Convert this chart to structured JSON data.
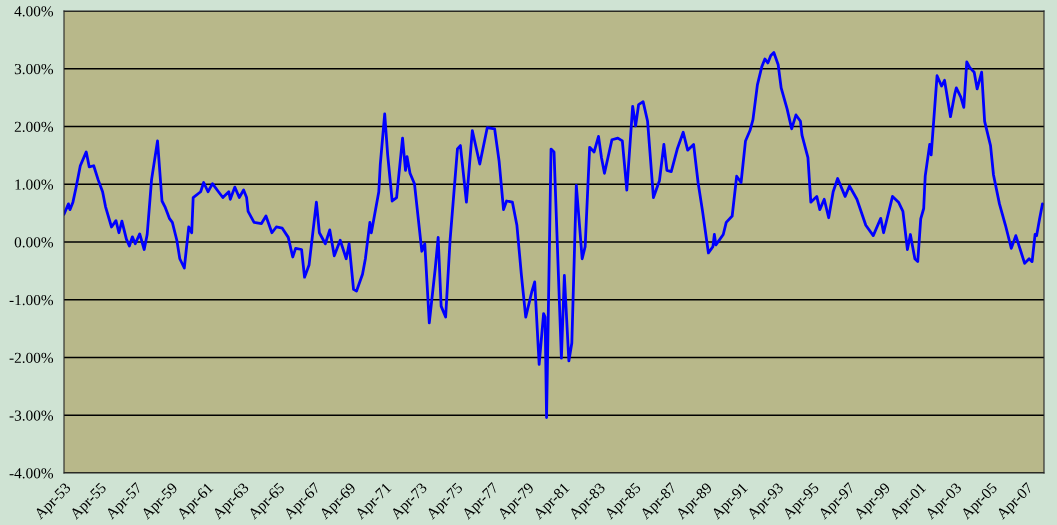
{
  "chart_data": {
    "type": "line",
    "x": [
      "1953-04",
      "1953-07",
      "1953-08",
      "1953-10",
      "1953-12",
      "1954-03",
      "1954-07",
      "1954-09",
      "1954-12",
      "1955-03",
      "1955-06",
      "1955-08",
      "1955-12",
      "1956-03",
      "1956-05",
      "1956-07",
      "1956-10",
      "1956-12",
      "1957-02",
      "1957-04",
      "1957-07",
      "1957-10",
      "1957-12",
      "1958-03",
      "1958-07",
      "1958-10",
      "1958-12",
      "1959-03",
      "1959-05",
      "1959-08",
      "1959-10",
      "1960-01",
      "1960-04",
      "1960-06",
      "1960-07",
      "1960-12",
      "1961-02",
      "1961-05",
      "1961-08",
      "1961-12",
      "1962-03",
      "1962-07",
      "1962-08",
      "1962-11",
      "1963-02",
      "1963-05",
      "1963-07",
      "1963-08",
      "1963-12",
      "1964-05",
      "1964-08",
      "1964-12",
      "1965-03",
      "1965-07",
      "1965-11",
      "1966-02",
      "1966-04",
      "1966-08",
      "1966-10",
      "1967-01",
      "1967-06",
      "1967-08",
      "1967-12",
      "1968-03",
      "1968-06",
      "1968-10",
      "1969-02",
      "1969-04",
      "1969-07",
      "1969-09",
      "1970-01",
      "1970-03",
      "1970-06",
      "1970-07",
      "1970-12",
      "1971-01",
      "1971-04",
      "1971-06",
      "1971-09",
      "1971-12",
      "1972-04",
      "1972-06",
      "1972-07",
      "1972-09",
      "1972-12",
      "1973-05",
      "1973-07",
      "1973-10",
      "1974-02",
      "1974-04",
      "1974-06",
      "1974-09",
      "1974-12",
      "1975-05",
      "1975-07",
      "1975-11",
      "1976-03",
      "1976-08",
      "1977-01",
      "1977-06",
      "1977-09",
      "1977-12",
      "1978-02",
      "1978-06",
      "1978-09",
      "1978-12",
      "1979-03",
      "1979-07",
      "1979-09",
      "1979-12",
      "1980-03",
      "1980-04",
      "1980-05",
      "1980-08",
      "1980-10",
      "1981-03",
      "1981-05",
      "1981-08",
      "1981-10",
      "1982-01",
      "1982-05",
      "1982-07",
      "1982-10",
      "1983-01",
      "1983-04",
      "1983-06",
      "1983-08",
      "1984-01",
      "1984-05",
      "1984-08",
      "1984-11",
      "1985-03",
      "1985-05",
      "1985-07",
      "1985-10",
      "1986-01",
      "1986-05",
      "1986-09",
      "1986-12",
      "1987-02",
      "1987-05",
      "1987-09",
      "1988-01",
      "1988-04",
      "1988-08",
      "1988-11",
      "1989-02",
      "1989-06",
      "1989-09",
      "1989-10",
      "1989-11",
      "1990-04",
      "1990-06",
      "1990-10",
      "1991-01",
      "1991-04",
      "1991-07",
      "1991-10",
      "1991-12",
      "1992-03",
      "1992-06",
      "1992-08",
      "1992-10",
      "1992-12",
      "1993-02",
      "1993-05",
      "1993-07",
      "1993-11",
      "1994-02",
      "1994-05",
      "1994-08",
      "1994-09",
      "1995-01",
      "1995-03",
      "1995-07",
      "1995-09",
      "1995-12",
      "1996-03",
      "1996-06",
      "1996-09",
      "1997-02",
      "1997-05",
      "1997-10",
      "1998-04",
      "1998-09",
      "1999-02",
      "1999-04",
      "1999-10",
      "2000-02",
      "2000-05",
      "2000-08",
      "2000-10",
      "2001-01",
      "2001-03",
      "2001-05",
      "2001-07",
      "2001-08",
      "2001-11",
      "2001-12",
      "2002-04",
      "2002-07",
      "2002-09",
      "2003-01",
      "2003-04",
      "2003-05",
      "2003-08",
      "2003-10",
      "2003-12",
      "2004-02",
      "2004-05",
      "2004-07",
      "2004-10",
      "2004-12",
      "2005-04",
      "2005-06",
      "2005-10",
      "2006-02",
      "2006-06",
      "2006-09",
      "2006-12",
      "2007-03",
      "2007-06",
      "2007-08",
      "2007-10",
      "2007-11",
      "2008-01",
      "2008-03"
    ],
    "series": [
      {
        "color": "#0000ff",
        "values": [
          0.48,
          0.66,
          0.56,
          0.69,
          0.93,
          1.32,
          1.56,
          1.3,
          1.32,
          1.08,
          0.87,
          0.61,
          0.26,
          0.37,
          0.16,
          0.36,
          0.05,
          -0.07,
          0.09,
          -0.03,
          0.14,
          -0.13,
          0.13,
          1.08,
          1.75,
          0.71,
          0.61,
          0.41,
          0.34,
          0.03,
          -0.29,
          -0.45,
          0.26,
          0.16,
          0.77,
          0.87,
          1.03,
          0.87,
          1.01,
          0.87,
          0.77,
          0.87,
          0.74,
          0.95,
          0.77,
          0.9,
          0.77,
          0.53,
          0.34,
          0.32,
          0.45,
          0.16,
          0.26,
          0.24,
          0.08,
          -0.26,
          -0.11,
          -0.13,
          -0.61,
          -0.4,
          0.69,
          0.16,
          -0.03,
          0.21,
          -0.24,
          0.03,
          -0.29,
          -0.03,
          -0.82,
          -0.85,
          -0.56,
          -0.29,
          0.34,
          0.16,
          0.87,
          1.35,
          2.22,
          1.51,
          0.71,
          0.77,
          1.8,
          1.24,
          1.48,
          1.19,
          1.01,
          -0.16,
          -0.03,
          -1.4,
          -0.45,
          0.08,
          -1.11,
          -1.3,
          0.03,
          1.61,
          1.67,
          0.69,
          1.93,
          1.35,
          1.98,
          1.96,
          1.4,
          0.56,
          0.71,
          0.69,
          0.29,
          -0.56,
          -1.3,
          -0.87,
          -0.69,
          -2.12,
          -1.24,
          -1.3,
          -3.04,
          1.61,
          1.56,
          -2.01,
          -0.58,
          -2.06,
          -1.75,
          0.98,
          -0.29,
          -0.08,
          1.64,
          1.56,
          1.83,
          1.46,
          1.19,
          1.77,
          1.8,
          1.75,
          0.9,
          2.35,
          2.01,
          2.38,
          2.43,
          2.09,
          0.77,
          1.06,
          1.69,
          1.24,
          1.22,
          1.61,
          1.9,
          1.59,
          1.69,
          1.03,
          0.53,
          -0.19,
          -0.08,
          0.13,
          -0.05,
          0.13,
          0.34,
          0.45,
          1.14,
          1.03,
          1.75,
          1.93,
          2.12,
          2.72,
          3.04,
          3.17,
          3.1,
          3.23,
          3.28,
          3.07,
          2.67,
          2.3,
          1.96,
          2.2,
          2.09,
          1.85,
          1.46,
          0.69,
          0.79,
          0.56,
          0.74,
          0.42,
          0.87,
          1.1,
          0.79,
          0.97,
          0.74,
          0.29,
          0.11,
          0.41,
          0.16,
          0.79,
          0.69,
          0.53,
          -0.13,
          0.13,
          -0.29,
          -0.34,
          0.4,
          0.58,
          1.14,
          1.69,
          1.51,
          2.88,
          2.7,
          2.8,
          2.17,
          2.57,
          2.67,
          2.51,
          2.33,
          3.12,
          3.02,
          2.94,
          2.65,
          2.94,
          2.09,
          1.67,
          1.16,
          0.66,
          0.29,
          -0.11,
          0.11,
          -0.13,
          -0.37,
          -0.29,
          -0.34,
          0.13,
          0.11,
          0.4,
          0.66
        ]
      }
    ],
    "xlim": [
      "1953-04",
      "2008-04"
    ],
    "xticks": [
      {
        "value": "1953-04",
        "label": "Apr-53"
      },
      {
        "value": "1955-04",
        "label": "Apr-55"
      },
      {
        "value": "1957-04",
        "label": "Apr-57"
      },
      {
        "value": "1959-04",
        "label": "Apr-59"
      },
      {
        "value": "1961-04",
        "label": "Apr-61"
      },
      {
        "value": "1963-04",
        "label": "Apr-63"
      },
      {
        "value": "1965-04",
        "label": "Apr-65"
      },
      {
        "value": "1967-04",
        "label": "Apr-67"
      },
      {
        "value": "1969-04",
        "label": "Apr-69"
      },
      {
        "value": "1971-04",
        "label": "Apr-71"
      },
      {
        "value": "1973-04",
        "label": "Apr-73"
      },
      {
        "value": "1975-04",
        "label": "Apr-75"
      },
      {
        "value": "1977-04",
        "label": "Apr-77"
      },
      {
        "value": "1979-04",
        "label": "Apr-79"
      },
      {
        "value": "1981-04",
        "label": "Apr-81"
      },
      {
        "value": "1983-04",
        "label": "Apr-83"
      },
      {
        "value": "1985-04",
        "label": "Apr-85"
      },
      {
        "value": "1987-04",
        "label": "Apr-87"
      },
      {
        "value": "1989-04",
        "label": "Apr-89"
      },
      {
        "value": "1991-04",
        "label": "Apr-91"
      },
      {
        "value": "1993-04",
        "label": "Apr-93"
      },
      {
        "value": "1995-04",
        "label": "Apr-95"
      },
      {
        "value": "1997-04",
        "label": "Apr-97"
      },
      {
        "value": "1999-04",
        "label": "Apr-99"
      },
      {
        "value": "2001-04",
        "label": "Apr-01"
      },
      {
        "value": "2003-04",
        "label": "Apr-03"
      },
      {
        "value": "2005-04",
        "label": "Apr-05"
      },
      {
        "value": "2007-04",
        "label": "Apr-07"
      }
    ],
    "ylim": [
      -4,
      4
    ],
    "yticks": [
      {
        "value": -4,
        "label": "-4.00%"
      },
      {
        "value": -3,
        "label": "-3.00%"
      },
      {
        "value": -2,
        "label": "-2.00%"
      },
      {
        "value": -1,
        "label": "-1.00%"
      },
      {
        "value": 0,
        "label": "0.00%"
      },
      {
        "value": 1,
        "label": "1.00%"
      },
      {
        "value": 2,
        "label": "2.00%"
      },
      {
        "value": 3,
        "label": "3.00%"
      },
      {
        "value": 4,
        "label": "4.00%"
      }
    ],
    "grid": "y",
    "marker": "none",
    "line_style": "solid",
    "legend": false
  }
}
